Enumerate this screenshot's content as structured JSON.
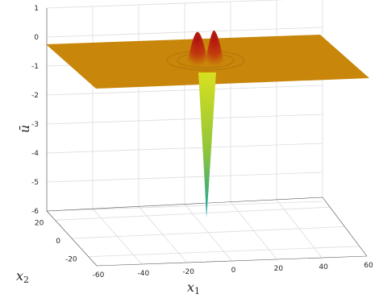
{
  "chart_data": {
    "type": "surface3d",
    "title": "",
    "xlabel": {
      "base": "x",
      "sub": "1"
    },
    "ylabel": {
      "base": "x",
      "sub": "2"
    },
    "zlabel": "ū",
    "x_ticks": [
      -60,
      -40,
      -20,
      0,
      20,
      40,
      60
    ],
    "y_ticks": [
      -20,
      0,
      20
    ],
    "z_ticks": [
      1,
      0,
      -1,
      -2,
      -3,
      -4,
      -5,
      -6
    ],
    "xlim": [
      -60,
      60
    ],
    "ylim": [
      -30,
      30
    ],
    "zlim": [
      -6,
      1
    ],
    "grid": true,
    "features": [
      {
        "kind": "plane",
        "z": -0.5
      },
      {
        "kind": "peak",
        "x": -6,
        "z": 0.1
      },
      {
        "kind": "peak",
        "x": 2,
        "z": 0.1
      },
      {
        "kind": "trough",
        "x": 0,
        "z": -6
      }
    ],
    "colors": {
      "plane": "#c8860a",
      "peak": "#b01010",
      "trough_top": "#d8e020",
      "trough_bottom": "#10a0a0"
    }
  }
}
